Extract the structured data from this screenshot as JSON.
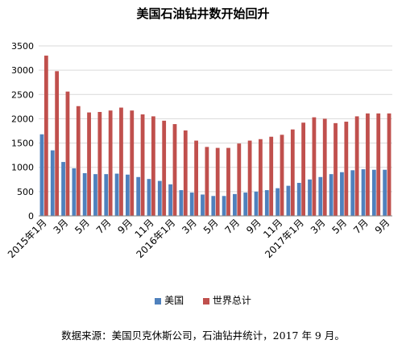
{
  "chart_data": {
    "type": "bar",
    "title": "美国石油钻井数开始回升",
    "ylim": [
      0,
      3500
    ],
    "yticks": [
      0,
      500,
      1000,
      1500,
      2000,
      2500,
      3000,
      3500
    ],
    "ytick_labels": [
      "0",
      "500",
      "1000",
      "1500",
      "2000",
      "2500",
      "3000",
      "3500"
    ],
    "grid": true,
    "legend_position": "bottom",
    "categories": [
      "2015年1月",
      "2",
      "3月",
      "4",
      "5月",
      "6",
      "7月",
      "8",
      "9月",
      "10",
      "11月",
      "12",
      "2016年1月",
      "2",
      "3月",
      "4",
      "5月",
      "6",
      "7月",
      "8",
      "9月",
      "10",
      "11月",
      "12",
      "2017年1月",
      "2",
      "3月",
      "4",
      "5月",
      "6",
      "7月",
      "8",
      "9月"
    ],
    "visible_category_labels": [
      "2015年1月",
      "3月",
      "5月",
      "7月",
      "9月",
      "11月",
      "2016年1月",
      "3月",
      "5月",
      "7月",
      "9月",
      "11月",
      "2017年1月",
      "3月",
      "5月",
      "7月",
      "9月"
    ],
    "series": [
      {
        "name": "美国",
        "color": "#4f81bd",
        "values": [
          1680,
          1350,
          1110,
          980,
          880,
          860,
          860,
          870,
          850,
          800,
          760,
          720,
          650,
          530,
          480,
          440,
          410,
          410,
          450,
          480,
          500,
          530,
          570,
          620,
          680,
          750,
          800,
          860,
          900,
          940,
          960,
          950,
          950
        ]
      },
      {
        "name": "世界总计",
        "color": "#c0504d",
        "values": [
          3300,
          2980,
          2560,
          2260,
          2130,
          2140,
          2170,
          2230,
          2170,
          2090,
          2050,
          1960,
          1890,
          1760,
          1550,
          1420,
          1400,
          1400,
          1490,
          1550,
          1580,
          1630,
          1670,
          1780,
          1920,
          2030,
          2000,
          1910,
          1940,
          2050,
          2110,
          2110,
          2110
        ]
      }
    ]
  },
  "source_note": "数据来源：美国贝克休斯公司，石油钻井统计，2017 年 9 月。"
}
